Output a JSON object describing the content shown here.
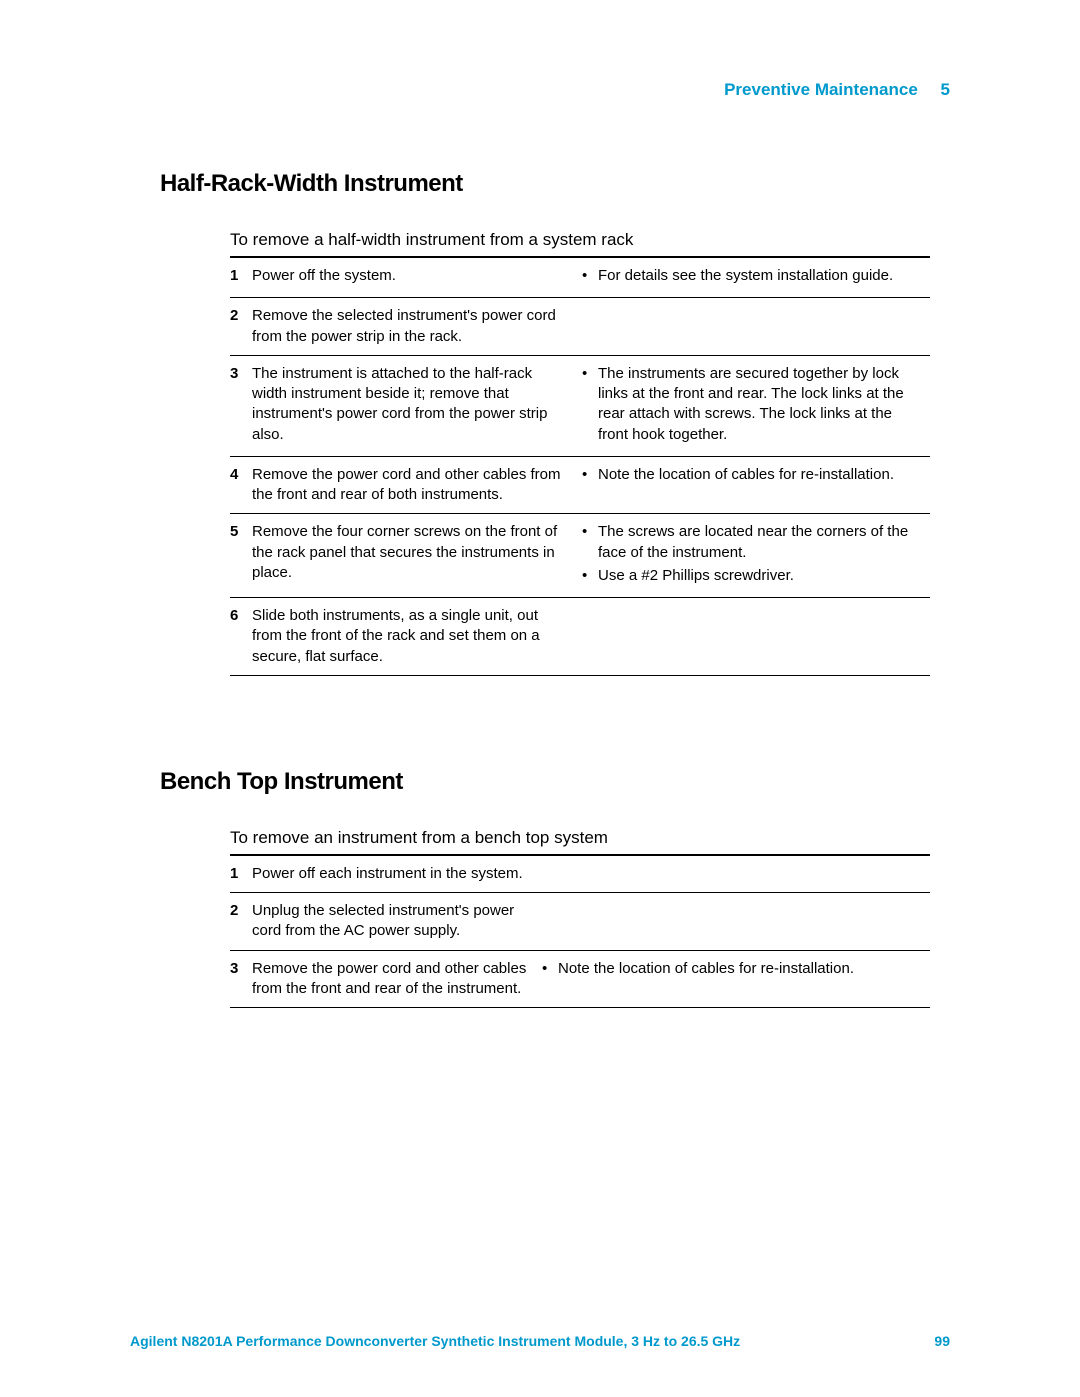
{
  "colors": {
    "accent": "#0099cc",
    "text": "#000000",
    "rule": "#000000",
    "background": "#ffffff"
  },
  "typography": {
    "heading_fontsize": 24,
    "body_fontsize": 17,
    "table_fontsize": 15,
    "footer_fontsize": 14
  },
  "header": {
    "chapter_title": "Preventive Maintenance",
    "chapter_number": "5"
  },
  "section1": {
    "heading": "Half-Rack-Width Instrument",
    "intro": "To remove a half-width instrument from a system rack",
    "steps": [
      {
        "num": "1",
        "text": "Power off the system.",
        "notes": [
          "For details see the system installation guide."
        ]
      },
      {
        "num": "2",
        "text": " Remove the selected instrument's power cord from the power strip in the rack.",
        "notes": []
      },
      {
        "num": "3",
        "text": "The instrument is attached to the half-rack width instrument beside it; remove that instrument's power cord from the power strip also.",
        "notes": [
          "The instruments are secured together by lock links at the front and rear. The lock links at the rear attach with screws. The lock links at the front hook together."
        ]
      },
      {
        "num": "4",
        "text": "Remove the power cord and other cables from the front and rear of both instruments.",
        "notes": [
          "Note the location of cables for re-installation."
        ]
      },
      {
        "num": "5",
        "text": "Remove the four corner screws on the front of the rack panel that secures the instruments in place.",
        "notes": [
          "The screws are located near the corners of the face of the instrument.",
          "Use a #2 Phillips screwdriver."
        ]
      },
      {
        "num": "6",
        "text": "Slide both instruments, as a single unit, out from the front of the rack and set them on a secure, flat surface.",
        "notes": []
      }
    ]
  },
  "section2": {
    "heading": "Bench Top Instrument",
    "intro": "To remove an instrument from a bench top system",
    "steps": [
      {
        "num": "1",
        "text": "Power off each instrument in the system.",
        "notes": []
      },
      {
        "num": "2",
        "text": " Unplug the selected instrument's power cord from the AC power supply.",
        "notes": []
      },
      {
        "num": "3",
        "text": "Remove the power cord and other cables from the front and rear of the instrument.",
        "notes": [
          "Note the location of cables for re-installation."
        ]
      }
    ]
  },
  "footer": {
    "doc_title": "Agilent N8201A Performance Downconverter Synthetic Instrument Module, 3 Hz to 26.5 GHz",
    "page_number": "99"
  }
}
